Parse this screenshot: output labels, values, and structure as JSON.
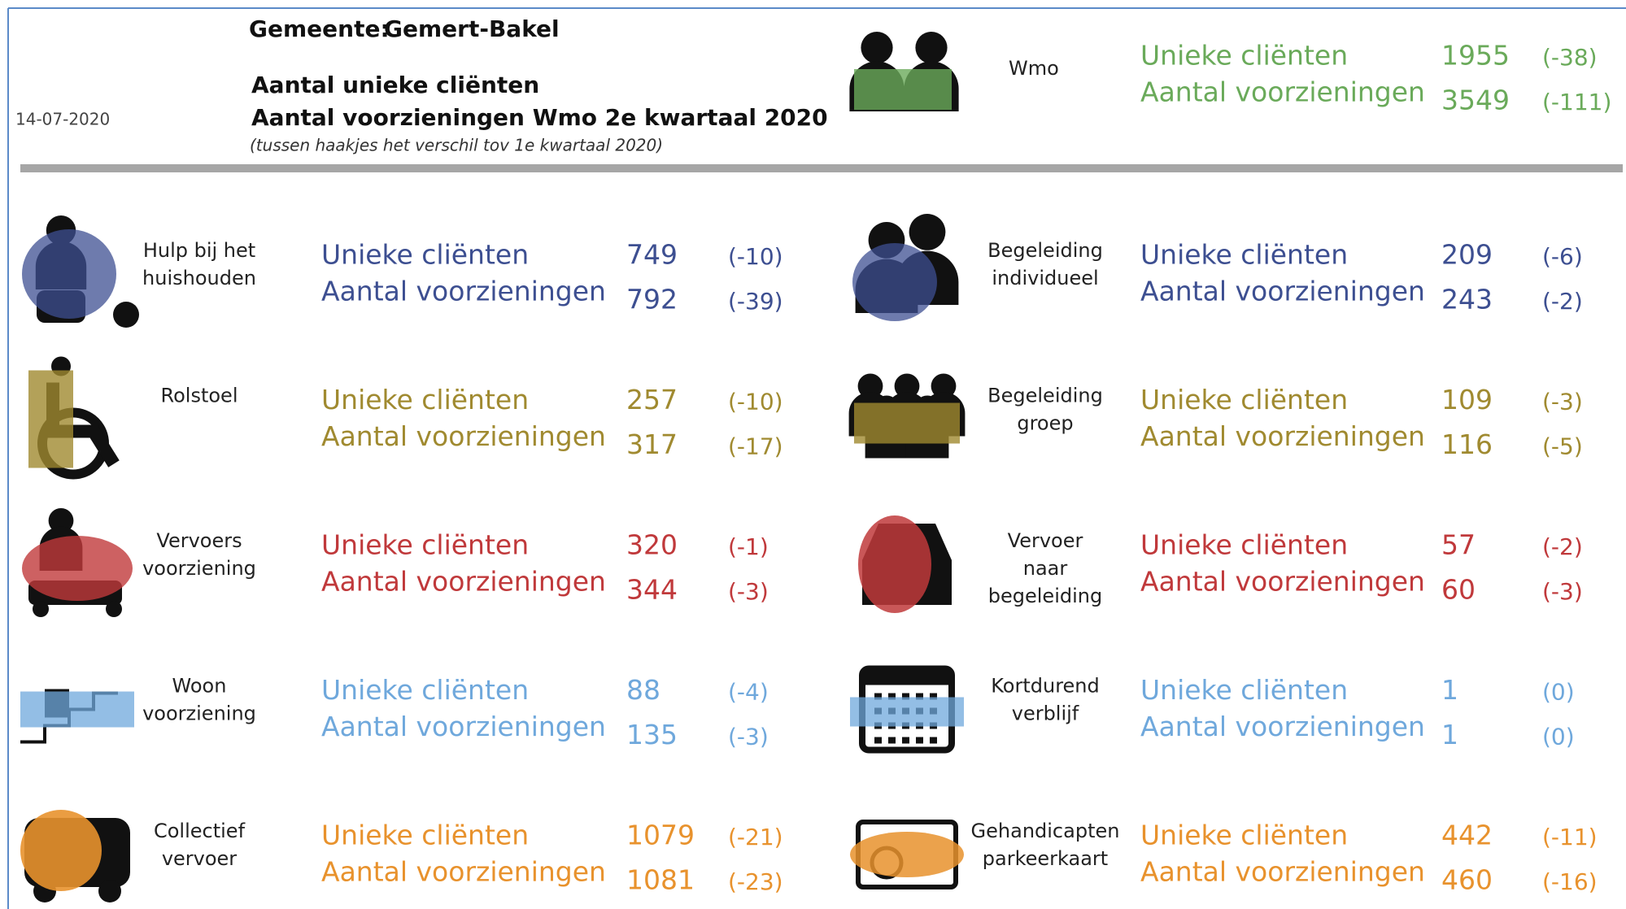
{
  "header": {
    "municipality_label": "Gemeente:",
    "municipality": "Gemert-Bakel",
    "date": "14-07-2020",
    "title_lines": [
      "Aantal unieke cliënten",
      "Aantal voorzieningen Wmo 2e kwartaal 2020"
    ],
    "note": "(tussen haakjes het verschil tov 1e kwartaal 2020)"
  },
  "summary": {
    "label": "Wmo",
    "color": "#6aaa5a",
    "rows": [
      {
        "label": "Unieke cliënten",
        "value": 1955,
        "diff": "(-38)"
      },
      {
        "label": "Aantal voorzieningen",
        "value": 3549,
        "diff": "(-111)"
      }
    ]
  },
  "items": [
    {
      "label": [
        "Hulp bij het",
        "huishouden"
      ],
      "color": "#3d4f91",
      "rows": [
        {
          "label": "Unieke cliënten",
          "value": 749,
          "diff": "(-10)"
        },
        {
          "label": "Aantal voorzieningen",
          "value": 792,
          "diff": "(-39)"
        }
      ]
    },
    {
      "label": [
        "Begeleiding",
        "individueel"
      ],
      "color": "#3d4f91",
      "rows": [
        {
          "label": "Unieke cliënten",
          "value": 209,
          "diff": "(-6)"
        },
        {
          "label": "Aantal voorzieningen",
          "value": 243,
          "diff": "(-2)"
        }
      ]
    },
    {
      "label": [
        "Rolstoel"
      ],
      "color": "#a08a30",
      "rows": [
        {
          "label": "Unieke cliënten",
          "value": 257,
          "diff": "(-10)"
        },
        {
          "label": "Aantal voorzieningen",
          "value": 317,
          "diff": "(-17)"
        }
      ]
    },
    {
      "label": [
        "Begeleiding",
        "groep"
      ],
      "color": "#a08a30",
      "rows": [
        {
          "label": "Unieke cliënten",
          "value": 109,
          "diff": "(-3)"
        },
        {
          "label": "Aantal voorzieningen",
          "value": 116,
          "diff": "(-5)"
        }
      ]
    },
    {
      "label": [
        "Vervoers",
        "voorziening"
      ],
      "color": "#c0393b",
      "rows": [
        {
          "label": "Unieke cliënten",
          "value": 320,
          "diff": "(-1)"
        },
        {
          "label": "Aantal voorzieningen",
          "value": 344,
          "diff": "(-3)"
        }
      ]
    },
    {
      "label": [
        "Vervoer",
        "naar",
        "begeleiding"
      ],
      "color": "#c0393b",
      "rows": [
        {
          "label": "Unieke cliënten",
          "value": 57,
          "diff": "(-2)"
        },
        {
          "label": "Aantal voorzieningen",
          "value": 60,
          "diff": "(-3)"
        }
      ]
    },
    {
      "label": [
        "Woon",
        "voorziening"
      ],
      "color": "#6fa8dc",
      "rows": [
        {
          "label": "Unieke cliënten",
          "value": 88,
          "diff": "(-4)"
        },
        {
          "label": "Aantal voorzieningen",
          "value": 135,
          "diff": "(-3)"
        }
      ]
    },
    {
      "label": [
        "Kortdurend",
        "verblijf"
      ],
      "color": "#6fa8dc",
      "rows": [
        {
          "label": "Unieke cliënten",
          "value": 1,
          "diff": "(0)"
        },
        {
          "label": "Aantal voorzieningen",
          "value": 1,
          "diff": "(0)"
        }
      ]
    },
    {
      "label": [
        "Collectief",
        "vervoer"
      ],
      "color": "#e8922d",
      "rows": [
        {
          "label": "Unieke cliënten",
          "value": 1079,
          "diff": "(-21)"
        },
        {
          "label": "Aantal voorzieningen",
          "value": 1081,
          "diff": "(-23)"
        }
      ]
    },
    {
      "label": [
        "Gehandicapten",
        "parkeerkaart"
      ],
      "color": "#e8922d",
      "rows": [
        {
          "label": "Unieke cliënten",
          "value": 442,
          "diff": "(-11)"
        },
        {
          "label": "Aantal voorzieningen",
          "value": 460,
          "diff": "(-16)"
        }
      ]
    }
  ]
}
